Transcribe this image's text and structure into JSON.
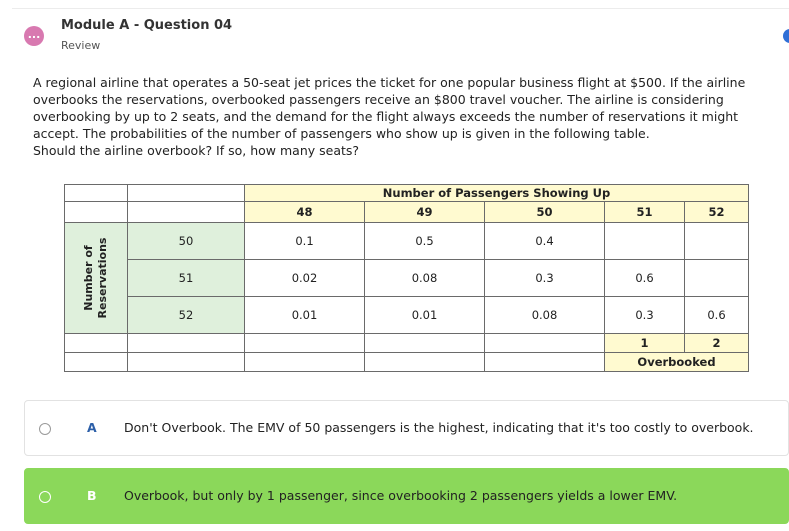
{
  "header": {
    "avatar_glyph": "...",
    "title": "Module A - Question 04",
    "subtitle": "Review"
  },
  "question": {
    "paragraph": "A regional airline that operates a 50-seat jet prices the ticket for one popular business flight at $500. If the airline overbooks the reservations, overbooked passengers receive an $800 travel voucher. The airline is considering overbooking by up to 2 seats, and the demand for the flight always exceeds the number of reservations it might accept. The probabilities of the number of passengers who show up is given in the following table.",
    "prompt": "Should the airline overbook? If so, how many seats?"
  },
  "table": {
    "top_header": "Number of Passengers Showing Up",
    "columns": [
      "48",
      "49",
      "50",
      "51",
      "52"
    ],
    "row_axis_label_line1": "Number of",
    "row_axis_label_line2": "Reservations",
    "rows": [
      {
        "label": "50",
        "cells": [
          "0.1",
          "0.5",
          "0.4",
          "",
          ""
        ]
      },
      {
        "label": "51",
        "cells": [
          "0.02",
          "0.08",
          "0.3",
          "0.6",
          ""
        ]
      },
      {
        "label": "52",
        "cells": [
          "0.01",
          "0.01",
          "0.08",
          "0.3",
          "0.6"
        ]
      }
    ],
    "overbooked_values": [
      "1",
      "2"
    ],
    "overbooked_label": "Overbooked"
  },
  "options": [
    {
      "letter": "A",
      "text": "Don't Overbook. The EMV of 50 passengers is the highest, indicating that it's too costly to overbook.",
      "selected": false
    },
    {
      "letter": "B",
      "text": "Overbook, but only by 1 passenger, since overbooking 2 passengers yields a lower EMV.",
      "selected": true
    }
  ],
  "colors": {
    "selected_option": "#8bd85a",
    "header_fill": "#fffad0",
    "row_label_fill": "#dff0dc",
    "avatar": "#d879b0"
  }
}
